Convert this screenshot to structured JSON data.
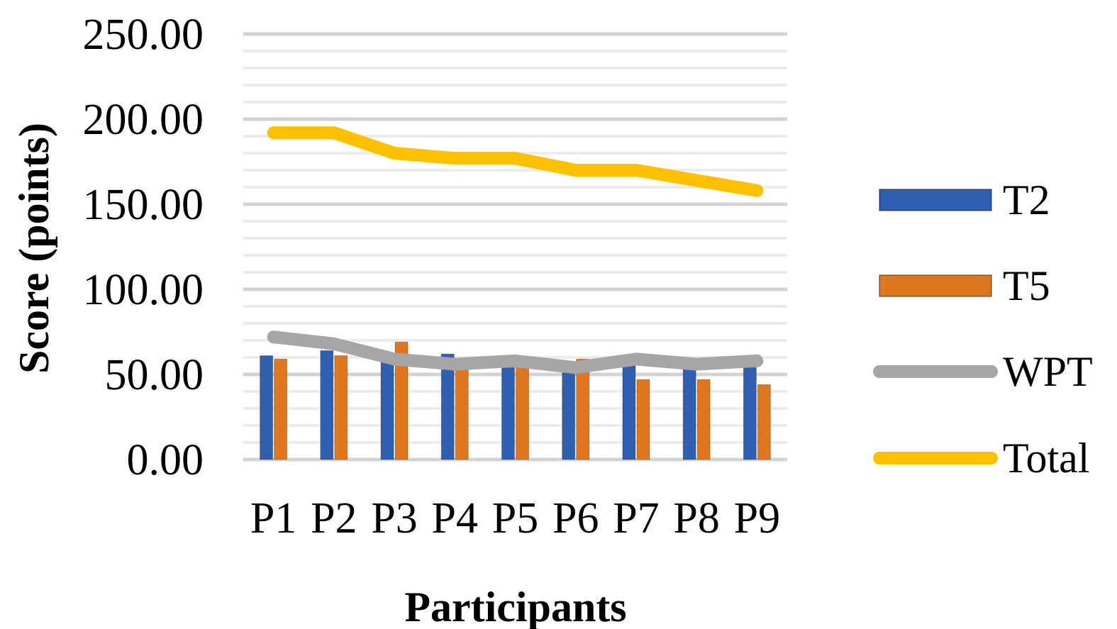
{
  "chart_data": {
    "type": "bar",
    "title": "",
    "xlabel": "Participants",
    "ylabel": "Score (points)",
    "ylim": [
      0,
      250
    ],
    "yticks": [
      "0.00",
      "50.00",
      "100.00",
      "150.00",
      "200.00",
      "250.00"
    ],
    "categories": [
      "P1",
      "P2",
      "P3",
      "P4",
      "P5",
      "P6",
      "P7",
      "P8",
      "P9"
    ],
    "grid": true,
    "legend_position": "right",
    "series": [
      {
        "name": "T2",
        "kind": "bar",
        "color": "#2E5FB0",
        "values": [
          61,
          64,
          58,
          62,
          56,
          51,
          56,
          53,
          57
        ]
      },
      {
        "name": "T5",
        "kind": "bar",
        "color": "#E0761E",
        "values": [
          59,
          61,
          69,
          57,
          56,
          59,
          47,
          47,
          44
        ]
      },
      {
        "name": "WPT",
        "kind": "line",
        "color": "#A6A6A6",
        "values": [
          72,
          68,
          59,
          56,
          58,
          54,
          59,
          56,
          58
        ]
      },
      {
        "name": "Total",
        "kind": "line",
        "color": "#FFC000",
        "values": [
          192,
          192,
          180,
          177,
          177,
          170,
          170,
          164,
          158
        ]
      }
    ]
  }
}
